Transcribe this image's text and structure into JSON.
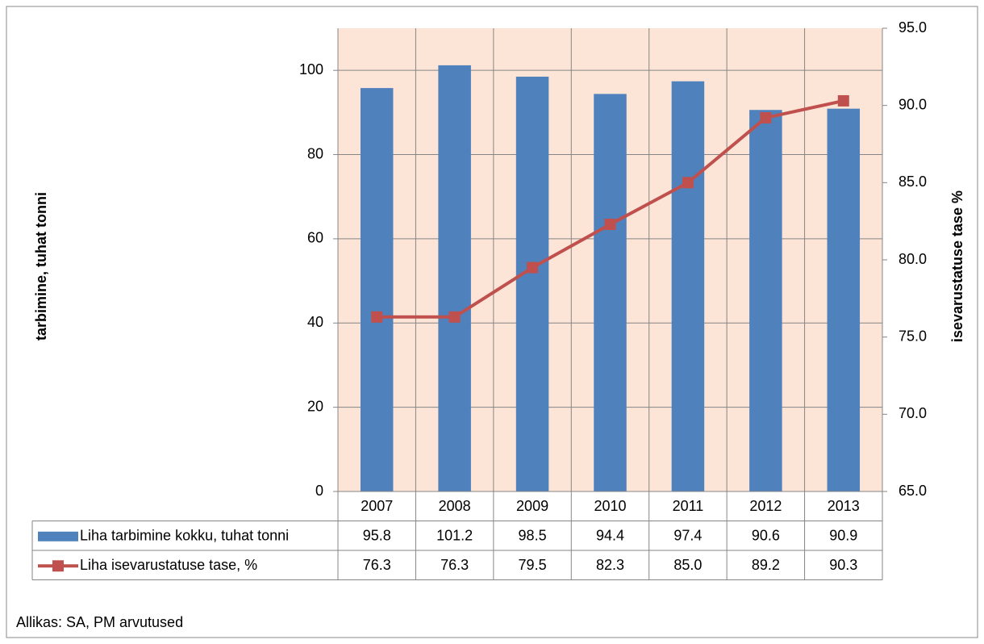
{
  "chart_data": {
    "type": "bar",
    "categories": [
      "2007",
      "2008",
      "2009",
      "2010",
      "2011",
      "2012",
      "2013"
    ],
    "series": [
      {
        "name": "Liha tarbimine kokku, tuhat tonni",
        "color": "#4f81bd",
        "axis": "y",
        "values": [
          95.8,
          101.2,
          98.5,
          94.4,
          97.4,
          90.6,
          90.9
        ],
        "value_labels": [
          "95.8",
          "101.2",
          "98.5",
          "94.4",
          "97.4",
          "90.6",
          "90.9"
        ]
      },
      {
        "name": "Liha isevarustatuse tase, %",
        "color": "#c0504d",
        "axis": "y2",
        "type": "line",
        "values": [
          76.3,
          76.3,
          79.5,
          82.3,
          85.0,
          89.2,
          90.3
        ],
        "value_labels": [
          "76.3",
          "76.3",
          "79.5",
          "82.3",
          "85.0",
          "89.2",
          "90.3"
        ]
      }
    ],
    "ylabel": "tarbimine, tuhat tonni",
    "y2label": "isevarustatuse tase %",
    "ylim": [
      0,
      110
    ],
    "yticks": [
      0,
      20,
      40,
      60,
      80,
      100
    ],
    "y2lim": [
      65,
      95
    ],
    "y2ticks": [
      {
        "value": 65,
        "label": "65.0"
      },
      {
        "value": 70,
        "label": "70.0"
      },
      {
        "value": 75,
        "label": "75.0"
      },
      {
        "value": 80,
        "label": "80.0"
      },
      {
        "value": 85,
        "label": "85.0"
      },
      {
        "value": 90,
        "label": "90.0"
      },
      {
        "value": 95,
        "label": "95.0"
      }
    ],
    "grid": true,
    "plot_background": "#fce4d6",
    "source": "Allikas: SA, PM arvutused"
  }
}
